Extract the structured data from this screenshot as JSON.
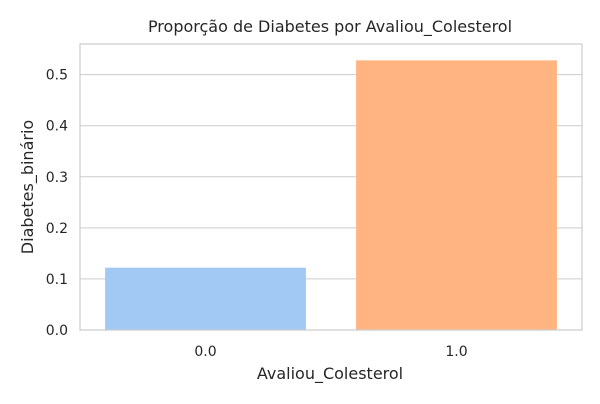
{
  "chart_data": {
    "type": "bar",
    "title": "Proporção de Diabetes por Avaliou_Colesterol",
    "xlabel": "Avaliou_Colesterol",
    "ylabel": "Diabetes_binário",
    "categories": [
      "0.0",
      "1.0"
    ],
    "values": [
      0.122,
      0.528
    ],
    "ylim": [
      0,
      0.56
    ],
    "yticks": [
      0.0,
      0.1,
      0.2,
      0.3,
      0.4,
      0.5
    ],
    "ytick_labels": [
      "0.0",
      "0.1",
      "0.2",
      "0.3",
      "0.4",
      "0.5"
    ],
    "bar_colors": [
      "#a1c9f4",
      "#ffb482"
    ],
    "grid": true,
    "legend": "none"
  }
}
